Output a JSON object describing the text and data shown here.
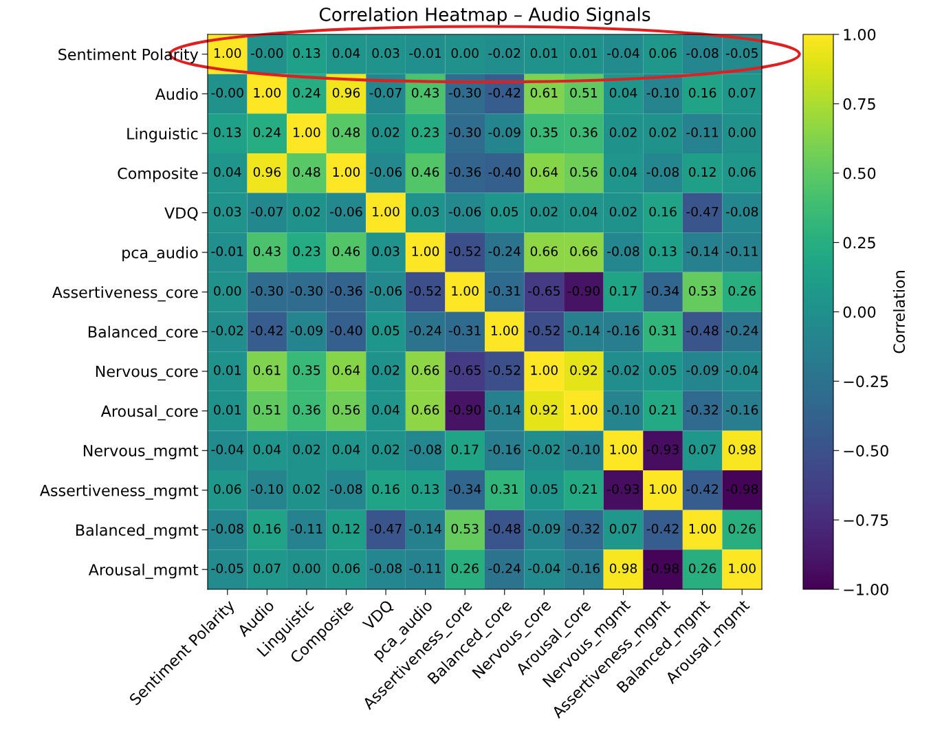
{
  "chart_data": {
    "type": "heatmap",
    "title": "Correlation Heatmap – Audio Signals",
    "clabel": "Correlation",
    "categories": [
      "Sentiment Polarity",
      "Audio",
      "Linguistic",
      "Composite",
      "VDQ",
      "pca_audio",
      "Assertiveness_core",
      "Balanced_core",
      "Nervous_core",
      "Arousal_core",
      "Nervous_mgmt",
      "Assertiveness_mgmt",
      "Balanced_mgmt",
      "Arousal_mgmt"
    ],
    "y_categories": [
      "Sentiment Polarity",
      "Audio",
      "Linguistic",
      "Composite",
      "VDQ",
      "pca_audio",
      "Assertiveness_core",
      "Balanced_core",
      "Nervous_core",
      "Arousal_core",
      "Nervous_mgmt",
      "Assertiveness_mgmt",
      "Balanced_mgmt",
      "Arousal_mgmt"
    ],
    "cells": [
      [
        1.0,
        -0.0,
        0.13,
        0.04,
        0.03,
        -0.01,
        0.0,
        -0.02,
        0.01,
        0.01,
        -0.04,
        0.06,
        -0.08,
        -0.05
      ],
      [
        -0.0,
        1.0,
        0.24,
        0.96,
        -0.07,
        0.43,
        -0.3,
        -0.42,
        0.61,
        0.51,
        0.04,
        -0.1,
        0.16,
        0.07
      ],
      [
        0.13,
        0.24,
        1.0,
        0.48,
        0.02,
        0.23,
        -0.3,
        -0.09,
        0.35,
        0.36,
        0.02,
        0.02,
        -0.11,
        0.0
      ],
      [
        0.04,
        0.96,
        0.48,
        1.0,
        -0.06,
        0.46,
        -0.36,
        -0.4,
        0.64,
        0.56,
        0.04,
        -0.08,
        0.12,
        0.06
      ],
      [
        0.03,
        -0.07,
        0.02,
        -0.06,
        1.0,
        0.03,
        -0.06,
        0.05,
        0.02,
        0.04,
        0.02,
        0.16,
        -0.47,
        -0.08
      ],
      [
        -0.01,
        0.43,
        0.23,
        0.46,
        0.03,
        1.0,
        -0.52,
        -0.24,
        0.66,
        0.66,
        -0.08,
        0.13,
        -0.14,
        -0.11
      ],
      [
        0.0,
        -0.3,
        -0.3,
        -0.36,
        -0.06,
        -0.52,
        1.0,
        -0.31,
        -0.65,
        -0.9,
        0.17,
        -0.34,
        0.53,
        0.26
      ],
      [
        -0.02,
        -0.42,
        -0.09,
        -0.4,
        0.05,
        -0.24,
        -0.31,
        1.0,
        -0.52,
        -0.14,
        -0.16,
        0.31,
        -0.48,
        -0.24
      ],
      [
        0.01,
        0.61,
        0.35,
        0.64,
        0.02,
        0.66,
        -0.65,
        -0.52,
        1.0,
        0.92,
        -0.02,
        0.05,
        -0.09,
        -0.04
      ],
      [
        0.01,
        0.51,
        0.36,
        0.56,
        0.04,
        0.66,
        -0.9,
        -0.14,
        0.92,
        1.0,
        -0.1,
        0.21,
        -0.32,
        -0.16
      ],
      [
        -0.04,
        0.04,
        0.02,
        0.04,
        0.02,
        -0.08,
        0.17,
        -0.16,
        -0.02,
        -0.1,
        1.0,
        -0.93,
        0.07,
        0.98
      ],
      [
        0.06,
        -0.1,
        0.02,
        -0.08,
        0.16,
        0.13,
        -0.34,
        0.31,
        0.05,
        0.21,
        -0.93,
        1.0,
        -0.42,
        -0.98
      ],
      [
        -0.08,
        0.16,
        -0.11,
        0.12,
        -0.47,
        -0.14,
        0.53,
        -0.48,
        -0.09,
        -0.32,
        0.07,
        -0.42,
        1.0,
        0.26
      ],
      [
        -0.05,
        0.07,
        0.0,
        0.06,
        -0.08,
        -0.11,
        0.26,
        -0.24,
        -0.04,
        -0.16,
        0.98,
        -0.98,
        0.26,
        1.0
      ]
    ],
    "cell_labels": [
      [
        "1.00",
        "-0.00",
        "0.13",
        "0.04",
        "0.03",
        "-0.01",
        "0.00",
        "-0.02",
        "0.01",
        "0.01",
        "-0.04",
        "0.06",
        "-0.08",
        "-0.05"
      ],
      [
        "-0.00",
        "1.00",
        "0.24",
        "0.96",
        "-0.07",
        "0.43",
        "-0.30",
        "-0.42",
        "0.61",
        "0.51",
        "0.04",
        "-0.10",
        "0.16",
        "0.07"
      ],
      [
        "0.13",
        "0.24",
        "1.00",
        "0.48",
        "0.02",
        "0.23",
        "-0.30",
        "-0.09",
        "0.35",
        "0.36",
        "0.02",
        "0.02",
        "-0.11",
        "0.00"
      ],
      [
        "0.04",
        "0.96",
        "0.48",
        "1.00",
        "-0.06",
        "0.46",
        "-0.36",
        "-0.40",
        "0.64",
        "0.56",
        "0.04",
        "-0.08",
        "0.12",
        "0.06"
      ],
      [
        "0.03",
        "-0.07",
        "0.02",
        "-0.06",
        "1.00",
        "0.03",
        "-0.06",
        "0.05",
        "0.02",
        "0.04",
        "0.02",
        "0.16",
        "-0.47",
        "-0.08"
      ],
      [
        "-0.01",
        "0.43",
        "0.23",
        "0.46",
        "0.03",
        "1.00",
        "-0.52",
        "-0.24",
        "0.66",
        "0.66",
        "-0.08",
        "0.13",
        "-0.14",
        "-0.11"
      ],
      [
        "0.00",
        "-0.30",
        "-0.30",
        "-0.36",
        "-0.06",
        "-0.52",
        "1.00",
        "-0.31",
        "-0.65",
        "-0.90",
        "0.17",
        "-0.34",
        "0.53",
        "0.26"
      ],
      [
        "-0.02",
        "-0.42",
        "-0.09",
        "-0.40",
        "0.05",
        "-0.24",
        "-0.31",
        "1.00",
        "-0.52",
        "-0.14",
        "-0.16",
        "0.31",
        "-0.48",
        "-0.24"
      ],
      [
        "0.01",
        "0.61",
        "0.35",
        "0.64",
        "0.02",
        "0.66",
        "-0.65",
        "-0.52",
        "1.00",
        "0.92",
        "-0.02",
        "0.05",
        "-0.09",
        "-0.04"
      ],
      [
        "0.01",
        "0.51",
        "0.36",
        "0.56",
        "0.04",
        "0.66",
        "-0.90",
        "-0.14",
        "0.92",
        "1.00",
        "-0.10",
        "0.21",
        "-0.32",
        "-0.16"
      ],
      [
        "-0.04",
        "0.04",
        "0.02",
        "0.04",
        "0.02",
        "-0.08",
        "0.17",
        "-0.16",
        "-0.02",
        "-0.10",
        "1.00",
        "-0.93",
        "0.07",
        "0.98"
      ],
      [
        "0.06",
        "-0.10",
        "0.02",
        "-0.08",
        "0.16",
        "0.13",
        "-0.34",
        "0.31",
        "0.05",
        "0.21",
        "-0.93",
        "1.00",
        "-0.42",
        "-0.98"
      ],
      [
        "-0.08",
        "0.16",
        "-0.11",
        "0.12",
        "-0.47",
        "-0.14",
        "0.53",
        "-0.48",
        "-0.09",
        "-0.32",
        "0.07",
        "-0.42",
        "1.00",
        "0.26"
      ],
      [
        "-0.05",
        "0.07",
        "0.00",
        "0.06",
        "-0.08",
        "-0.11",
        "0.26",
        "-0.24",
        "-0.04",
        "-0.16",
        "0.98",
        "-0.98",
        "0.26",
        "1.00"
      ]
    ],
    "data_labels": true,
    "clim": [
      -1.0,
      1.0
    ],
    "cticks": [
      {
        "value": 1.0,
        "label": "1.00"
      },
      {
        "value": 0.75,
        "label": "0.75"
      },
      {
        "value": 0.5,
        "label": "0.50"
      },
      {
        "value": 0.25,
        "label": "0.25"
      },
      {
        "value": 0.0,
        "label": "0.00"
      },
      {
        "value": -0.25,
        "label": "−0.25"
      },
      {
        "value": -0.5,
        "label": "−0.50"
      },
      {
        "value": -0.75,
        "label": "−0.75"
      },
      {
        "value": -1.0,
        "label": "−1.00"
      }
    ]
  }
}
